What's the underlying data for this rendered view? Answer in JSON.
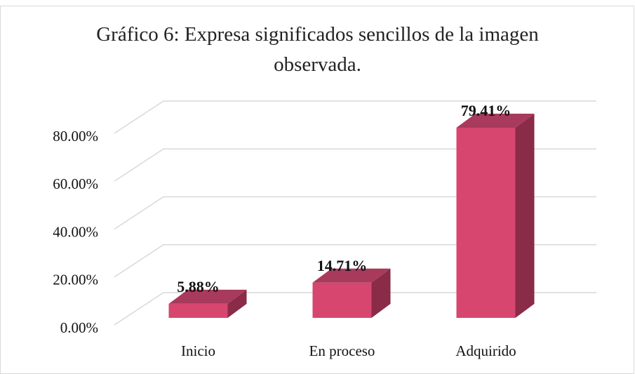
{
  "chart_data": {
    "type": "bar3d",
    "title": "Gráfico 6: Expresa significados sencillos de la imagen observada.",
    "categories": [
      "Inicio",
      "En proceso",
      "Adquirido"
    ],
    "values": [
      5.88,
      14.71,
      79.41
    ],
    "value_labels": [
      "5.88%",
      "14.71%",
      "79.41%"
    ],
    "color": "#d6466f",
    "ylim": [
      0,
      80
    ],
    "yticks": [
      {
        "value": 0,
        "label": "0.00%"
      },
      {
        "value": 20,
        "label": "20.00%"
      },
      {
        "value": 40,
        "label": "40.00%"
      },
      {
        "value": 60,
        "label": "60.00%"
      },
      {
        "value": 80,
        "label": "80.00%"
      }
    ],
    "grid": true
  }
}
